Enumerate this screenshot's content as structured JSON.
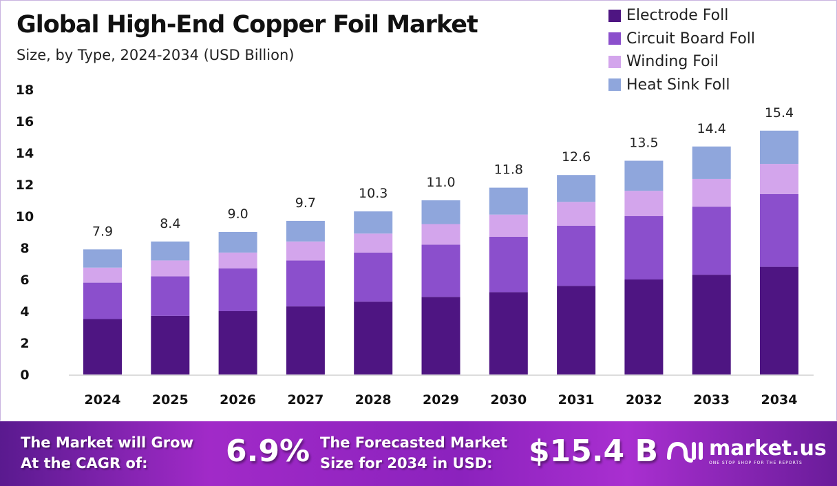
{
  "chart_data": {
    "type": "bar",
    "stacked": true,
    "title": "Global High-End Copper Foil Market",
    "subtitle": "Size, by Type, 2024-2034 (USD Billion)",
    "categories": [
      "2024",
      "2025",
      "2026",
      "2027",
      "2028",
      "2029",
      "2030",
      "2031",
      "2032",
      "2033",
      "2034"
    ],
    "series": [
      {
        "name": "Electrode Foll",
        "color": "#4e1582",
        "values": [
          3.5,
          3.7,
          4.0,
          4.3,
          4.6,
          4.9,
          5.2,
          5.6,
          6.0,
          6.3,
          6.8
        ]
      },
      {
        "name": "Circuit Board Foll",
        "color": "#8b4fcc",
        "values": [
          2.3,
          2.5,
          2.7,
          2.9,
          3.1,
          3.3,
          3.5,
          3.8,
          4.0,
          4.3,
          4.6
        ]
      },
      {
        "name": "Winding Foil",
        "color": "#d3a5ec",
        "values": [
          0.95,
          1.0,
          1.0,
          1.2,
          1.2,
          1.3,
          1.4,
          1.5,
          1.6,
          1.75,
          1.9
        ]
      },
      {
        "name": "Heat Sink Foll",
        "color": "#8fa6dc",
        "values": [
          1.15,
          1.2,
          1.3,
          1.3,
          1.4,
          1.5,
          1.7,
          1.7,
          1.9,
          2.05,
          2.1
        ]
      }
    ],
    "totals": [
      "7.9",
      "8.4",
      "9.0",
      "9.7",
      "10.3",
      "11.0",
      "11.8",
      "12.6",
      "13.5",
      "14.4",
      "15.4"
    ],
    "yticks": [
      "0",
      "2",
      "4",
      "6",
      "8",
      "10",
      "12",
      "14",
      "16",
      "18"
    ],
    "ylim": [
      0,
      18
    ],
    "grid": false,
    "legend_position": "top-right"
  },
  "footer": {
    "cagr_label_1": "The Market will Grow",
    "cagr_label_2": "At the CAGR of:",
    "cagr_value": "6.9%",
    "forecast_label_1": "The Forecasted Market",
    "forecast_label_2": "Size for 2034 in USD:",
    "forecast_value": "$15.4 B",
    "brand": "market.us",
    "tagline": "ONE STOP SHOP FOR THE REPORTS"
  }
}
